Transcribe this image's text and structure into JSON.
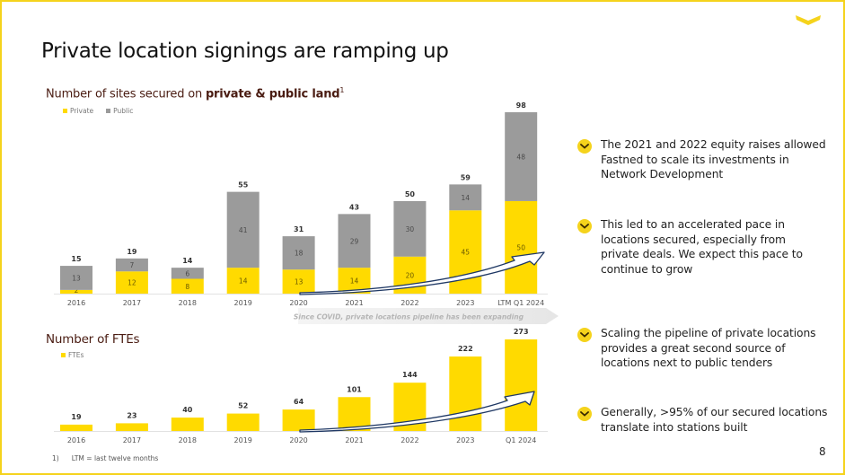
{
  "slide": {
    "title": "Private location signings are ramping up",
    "page_number": "8",
    "footnote": {
      "marker": "1)",
      "text": "LTM = last twelve months"
    },
    "brand_color": "#F5D31C",
    "logo_icon": "chevron-down-icon"
  },
  "bullets": [
    {
      "icon": "chevron-down-icon",
      "text_lines": [
        "The 2021 and 2022 equity raises allowed",
        "Fastned to scale its investments in",
        "Network Development"
      ]
    },
    {
      "icon": "chevron-down-icon",
      "text_lines": [
        "This led to an accelerated pace in",
        "locations secured, especially from",
        "private deals. We expect this pace to",
        "continue to grow"
      ]
    },
    {
      "icon": "chevron-down-icon",
      "text_lines": [
        "Scaling the pipeline of private locations",
        "provides a great second source of",
        "locations next to public tenders"
      ]
    },
    {
      "icon": "chevron-down-icon",
      "text_lines": [
        "Generally, >95% of our secured locations",
        "translate into stations built"
      ]
    }
  ],
  "chart_data": [
    {
      "type": "bar",
      "stacked": true,
      "title": {
        "prefix": "Number of sites secured on ",
        "bold": "private & public land",
        "superscript": "1"
      },
      "categories": [
        "2016",
        "2017",
        "2018",
        "2019",
        "2020",
        "2021",
        "2022",
        "2023",
        "LTM Q1 2024"
      ],
      "series": [
        {
          "name": "Private",
          "color": "#FFDA00",
          "values": [
            2,
            12,
            8,
            14,
            13,
            14,
            20,
            45,
            50
          ]
        },
        {
          "name": "Public",
          "color": "#9B9B9B",
          "values": [
            13,
            7,
            6,
            41,
            18,
            29,
            30,
            14,
            48
          ]
        }
      ],
      "totals": [
        15,
        19,
        14,
        55,
        31,
        43,
        50,
        59,
        98
      ],
      "legend": "top-left",
      "annotation": "Since COVID, private locations pipeline has been expanding",
      "trend_arrow": {
        "from_category": "2020",
        "to_category": "LTM Q1 2024",
        "color": "#1F3864"
      },
      "xlabel": "",
      "ylabel": "",
      "ylim": [
        0,
        98
      ],
      "grid": false
    },
    {
      "type": "bar",
      "title": "Number of FTEs",
      "categories": [
        "2016",
        "2017",
        "2018",
        "2019",
        "2020",
        "2021",
        "2022",
        "2023",
        "Q1 2024"
      ],
      "series": [
        {
          "name": "FTEs",
          "color": "#FFDA00",
          "values": [
            19,
            23,
            40,
            52,
            64,
            101,
            144,
            222,
            273
          ]
        }
      ],
      "legend": "top-left",
      "trend_arrow": {
        "from_category": "2020",
        "to_category": "Q1 2024",
        "color": "#1F3864"
      },
      "xlabel": "",
      "ylabel": "",
      "ylim": [
        0,
        273
      ],
      "grid": false
    }
  ]
}
